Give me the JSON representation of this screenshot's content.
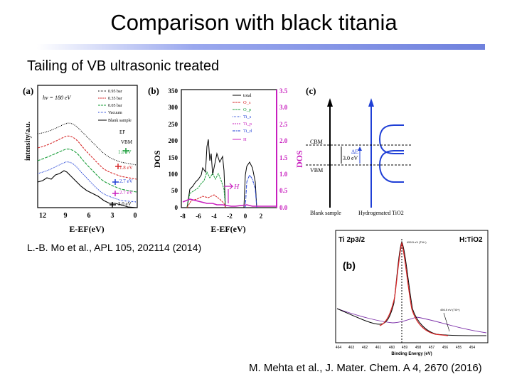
{
  "slide": {
    "title": "Comparison with black titania",
    "subtitle": "Tailing of VB ultrasonic treated",
    "citation_left": "L.-B. Mo et al., APL 105, 202114 (2014)",
    "citation_right": "M. Mehta et al., J. Mater. Chem. A 4, 2670 (2016)",
    "accent_color": "#6f81dd"
  },
  "figure_a": {
    "panel_label": "(a)",
    "photon_energy": "hν = 180 eV",
    "legend": [
      "0.95 bar",
      "0.35 bar",
      "0.05 bar",
      "Vacuum",
      "Blank sample"
    ],
    "vbm_label": "VBM",
    "ef_label": "EF",
    "gap_labels": [
      "1.0 eV",
      "1.8 eV",
      "2.7 eV",
      "2.7 eV",
      "3.0 eV"
    ],
    "y_label": "intensity/a.u.",
    "x_label": "E-EF(eV)",
    "x_ticks": [
      "12",
      "9",
      "6",
      "3",
      "0"
    ],
    "colors": [
      "#000000",
      "#d62728",
      "#1a9e3a",
      "#1f3fd6",
      "#c81fbe",
      "#000000"
    ]
  },
  "figure_b": {
    "panel_label": "(b)",
    "y_label_left": "DOS",
    "y_label_right": "DOS",
    "left_ticks": [
      "350",
      "300",
      "250",
      "200",
      "150",
      "100",
      "50",
      "0"
    ],
    "right_ticks": [
      "3.5",
      "3.0",
      "2.5",
      "2.0",
      "1.5",
      "1.0",
      "0.5",
      "0.0"
    ],
    "x_ticks": [
      "-8",
      "-6",
      "-4",
      "-2",
      "0",
      "2"
    ],
    "x_label": "E-EF(eV)",
    "legend": [
      "total",
      "O_s",
      "O_p",
      "Ti_s",
      "Ti_p",
      "Ti_d",
      "H"
    ],
    "legend_colors": [
      "#000000",
      "#d62728",
      "#1a9e3a",
      "#1f3fd6",
      "#c81fbe",
      "#1f3fd6",
      "#c81fbe"
    ],
    "axis_right_color": "#c81fbe",
    "arrow_label": "H"
  },
  "figure_c": {
    "panel_label": "(c)",
    "cbm_label": "CBM",
    "vbm_label": "VBM",
    "gap_label": "3.0 eV",
    "delta_label": "ΔE",
    "left_caption": "Blank sample",
    "right_caption": "Hydrogenated TiO2"
  },
  "figure_xps": {
    "panel_label": "(b)",
    "spectrum_label": "Ti 2p3/2",
    "sample_label": "H:TiO2",
    "peak1_label": "459.5 eV (Ti4+)",
    "peak2_label": "456.5 eV (Ti3+)",
    "x_label": "Binding Energy (eV)",
    "x_ticks": [
      "464",
      "463",
      "462",
      "461",
      "460",
      "459",
      "458",
      "457",
      "456",
      "455",
      "454"
    ],
    "colors": [
      "#000000",
      "#d62728",
      "#7b2fa8"
    ]
  }
}
